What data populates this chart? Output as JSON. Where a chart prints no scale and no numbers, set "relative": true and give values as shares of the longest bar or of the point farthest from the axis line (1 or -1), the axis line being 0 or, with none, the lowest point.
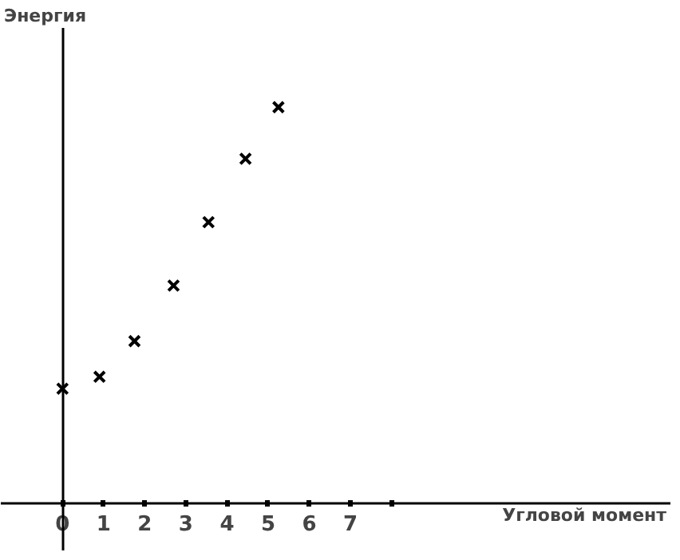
{
  "chart_data": {
    "type": "scatter",
    "relative": true,
    "xlabel": "Угловой момент",
    "ylabel": "Энергия",
    "x": [
      0,
      0.9,
      1.75,
      2.7,
      3.55,
      4.45,
      5.25
    ],
    "values": [
      0.29,
      0.32,
      0.41,
      0.55,
      0.71,
      0.87,
      1.0
    ],
    "color": "#000000",
    "marker": "cross",
    "xlim": [
      -1.5,
      14.8
    ],
    "xticks": [
      0,
      1,
      2,
      3,
      4,
      5,
      6,
      7,
      {
        "value": 8,
        "label": null
      }
    ]
  }
}
